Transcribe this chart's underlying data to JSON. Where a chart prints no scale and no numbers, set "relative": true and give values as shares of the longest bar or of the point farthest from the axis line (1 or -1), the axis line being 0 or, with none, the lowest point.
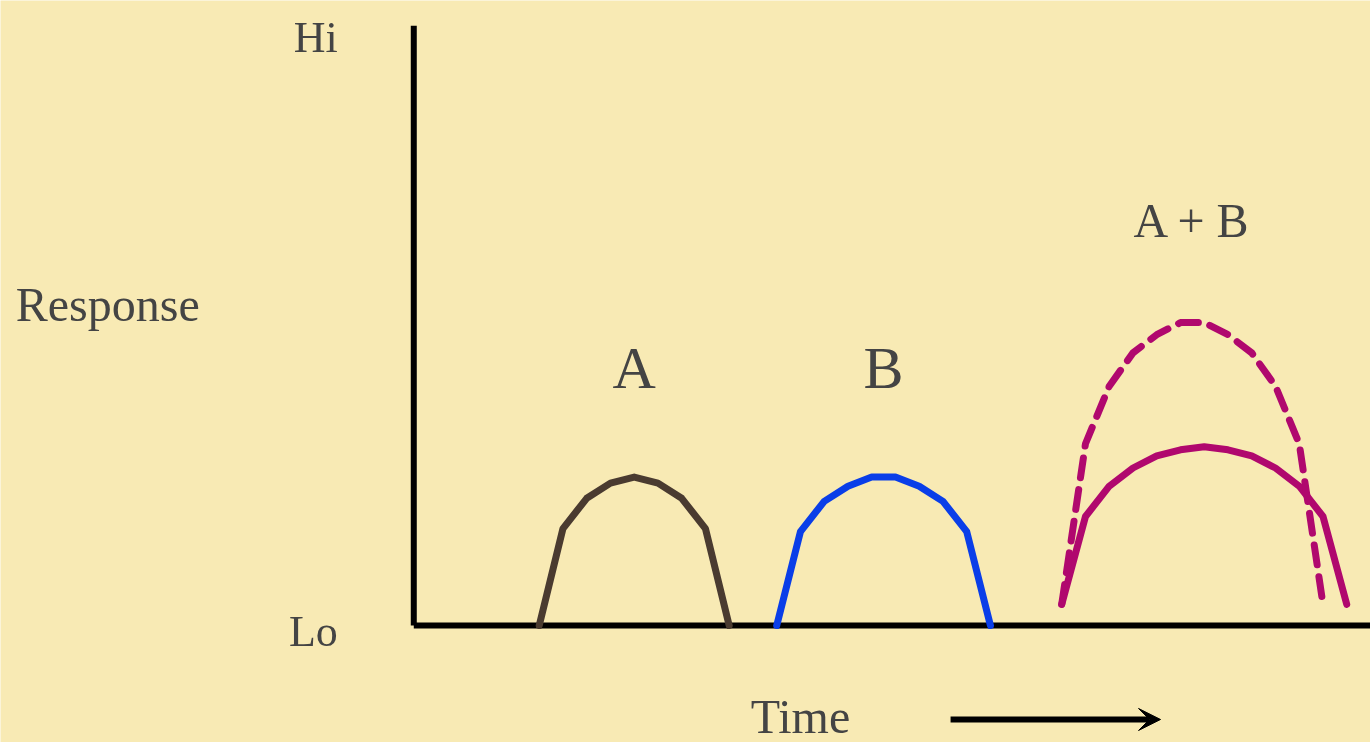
{
  "chart_data": {
    "type": "line",
    "relative": true,
    "xlabel": "Time",
    "ylabel": "Response",
    "annotations": [
      "Hi",
      "Lo"
    ],
    "categories": [
      null,
      null,
      null,
      null,
      null,
      null,
      null,
      null,
      null,
      null,
      null,
      null,
      null,
      null,
      null,
      null,
      null,
      null,
      null,
      null,
      null,
      null,
      null,
      null,
      null,
      null,
      null,
      null,
      null,
      null,
      null,
      null,
      null,
      null,
      null,
      null,
      null,
      null,
      null,
      null,
      null
    ],
    "series": [
      {
        "name": "A",
        "color": "#4a3b30",
        "line_style": "solid",
        "values": [
          null,
          null,
          null,
          null,
          null,
          0,
          0.32,
          0.42,
          0.47,
          0.49,
          0.47,
          0.42,
          0.32,
          0,
          null,
          null,
          null,
          null,
          null,
          null,
          null,
          null,
          null,
          null,
          null,
          null,
          null,
          null,
          null,
          null,
          null,
          null,
          null,
          null,
          null,
          null,
          null,
          null,
          null,
          null,
          null
        ]
      },
      {
        "name": "B",
        "color": "#0a3ee8",
        "line_style": "solid",
        "values": [
          null,
          null,
          null,
          null,
          null,
          null,
          null,
          null,
          null,
          null,
          null,
          null,
          null,
          null,
          null,
          0,
          0.31,
          0.41,
          0.46,
          0.49,
          0.49,
          0.46,
          0.41,
          0.31,
          0,
          null,
          null,
          null,
          null,
          null,
          null,
          null,
          null,
          null,
          null,
          null,
          null,
          null,
          null,
          null,
          null
        ]
      },
      {
        "color": "#b0086e",
        "line_style": "solid",
        "values": [
          null,
          null,
          null,
          null,
          null,
          null,
          null,
          null,
          null,
          null,
          null,
          null,
          null,
          null,
          null,
          null,
          null,
          null,
          null,
          null,
          null,
          null,
          null,
          null,
          null,
          null,
          null,
          0.07,
          0.36,
          0.46,
          0.52,
          0.56,
          0.58,
          0.59,
          0.58,
          0.56,
          0.52,
          0.46,
          0.36,
          0.07,
          null
        ]
      },
      {
        "name": "A + B",
        "color": "#b0086e",
        "line_style": "dashed",
        "values": [
          null,
          null,
          null,
          null,
          null,
          null,
          null,
          null,
          null,
          null,
          null,
          null,
          null,
          null,
          null,
          null,
          null,
          null,
          null,
          null,
          null,
          null,
          null,
          null,
          null,
          null,
          null,
          0.07,
          0.6,
          0.79,
          0.9,
          0.96,
          1.0,
          1.0,
          0.96,
          0.9,
          0.79,
          0.6,
          0.07,
          null,
          null
        ]
      }
    ]
  }
}
